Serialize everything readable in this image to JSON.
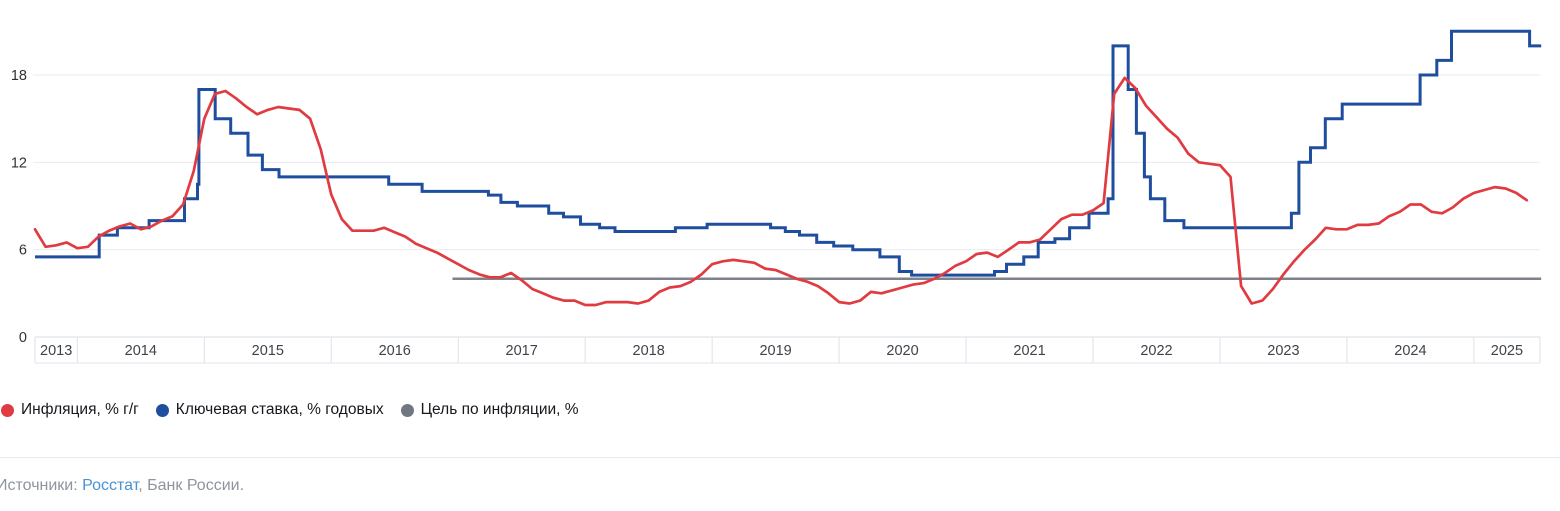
{
  "chart_data": {
    "type": "line",
    "title": "",
    "x_axis": {
      "start": "2013-09-01",
      "end": "2025-07-12",
      "year_labels": [
        2013,
        2014,
        2015,
        2016,
        2017,
        2018,
        2019,
        2020,
        2021,
        2022,
        2023,
        2024,
        2025
      ]
    },
    "y_axis": {
      "ticks": [
        0,
        6,
        12,
        18
      ],
      "max": 22,
      "grid": true
    },
    "legend_position": "bottom",
    "series": [
      {
        "name": "Инфляция, % г/г",
        "type": "line",
        "color": "#e13b42",
        "start": "2013-09",
        "frequency": "monthly",
        "values": [
          7.4,
          6.2,
          6.3,
          6.5,
          6.1,
          6.2,
          6.9,
          7.3,
          7.6,
          7.8,
          7.4,
          7.6,
          8.0,
          8.3,
          9.1,
          11.4,
          15.0,
          16.7,
          16.9,
          16.4,
          15.8,
          15.3,
          15.6,
          15.8,
          15.7,
          15.6,
          15.0,
          12.9,
          9.8,
          8.1,
          7.3,
          7.3,
          7.3,
          7.5,
          7.2,
          6.9,
          6.4,
          6.1,
          5.8,
          5.4,
          5.0,
          4.6,
          4.3,
          4.1,
          4.1,
          4.4,
          3.9,
          3.3,
          3.0,
          2.7,
          2.5,
          2.5,
          2.2,
          2.2,
          2.4,
          2.4,
          2.4,
          2.3,
          2.5,
          3.1,
          3.4,
          3.5,
          3.8,
          4.3,
          5.0,
          5.2,
          5.3,
          5.2,
          5.1,
          4.7,
          4.6,
          4.3,
          4.0,
          3.8,
          3.5,
          3.0,
          2.4,
          2.3,
          2.5,
          3.1,
          3.0,
          3.2,
          3.4,
          3.6,
          3.7,
          4.0,
          4.4,
          4.9,
          5.2,
          5.7,
          5.8,
          5.5,
          6.0,
          6.5,
          6.5,
          6.7,
          7.4,
          8.1,
          8.4,
          8.4,
          8.7,
          9.2,
          16.7,
          17.8,
          17.1,
          15.9,
          15.1,
          14.3,
          13.7,
          12.6,
          12.0,
          11.9,
          11.8,
          11.0,
          3.5,
          2.3,
          2.5,
          3.3,
          4.3,
          5.2,
          6.0,
          6.7,
          7.5,
          7.4,
          7.4,
          7.7,
          7.7,
          7.8,
          8.3,
          8.6,
          9.1,
          9.1,
          8.6,
          8.5,
          8.9,
          9.5,
          9.9,
          10.1,
          10.3,
          10.2,
          9.9,
          9.4
        ]
      },
      {
        "name": "Ключевая ставка, % годовых",
        "type": "step",
        "color": "#1f4e9e",
        "end": "2025-07-12",
        "changes": [
          [
            "2013-09-01",
            5.5
          ],
          [
            "2014-03-03",
            7.0
          ],
          [
            "2014-04-25",
            7.5
          ],
          [
            "2014-07-25",
            8.0
          ],
          [
            "2014-11-05",
            9.5
          ],
          [
            "2014-12-12",
            10.5
          ],
          [
            "2014-12-16",
            17.0
          ],
          [
            "2015-02-02",
            15.0
          ],
          [
            "2015-03-16",
            14.0
          ],
          [
            "2015-05-05",
            12.5
          ],
          [
            "2015-06-16",
            11.5
          ],
          [
            "2015-08-03",
            11.0
          ],
          [
            "2016-06-14",
            10.5
          ],
          [
            "2016-09-19",
            10.0
          ],
          [
            "2017-03-27",
            9.75
          ],
          [
            "2017-05-02",
            9.25
          ],
          [
            "2017-06-19",
            9.0
          ],
          [
            "2017-09-18",
            8.5
          ],
          [
            "2017-10-30",
            8.25
          ],
          [
            "2017-12-18",
            7.75
          ],
          [
            "2018-02-12",
            7.5
          ],
          [
            "2018-03-26",
            7.25
          ],
          [
            "2018-09-17",
            7.5
          ],
          [
            "2018-12-17",
            7.75
          ],
          [
            "2019-06-17",
            7.5
          ],
          [
            "2019-07-29",
            7.25
          ],
          [
            "2019-09-09",
            7.0
          ],
          [
            "2019-10-28",
            6.5
          ],
          [
            "2019-12-16",
            6.25
          ],
          [
            "2020-02-10",
            6.0
          ],
          [
            "2020-04-27",
            5.5
          ],
          [
            "2020-06-22",
            4.5
          ],
          [
            "2020-07-27",
            4.25
          ],
          [
            "2021-03-22",
            4.5
          ],
          [
            "2021-04-26",
            5.0
          ],
          [
            "2021-06-15",
            5.5
          ],
          [
            "2021-07-26",
            6.5
          ],
          [
            "2021-09-13",
            6.75
          ],
          [
            "2021-10-25",
            7.5
          ],
          [
            "2021-12-20",
            8.5
          ],
          [
            "2022-02-14",
            9.5
          ],
          [
            "2022-02-28",
            20.0
          ],
          [
            "2022-04-11",
            17.0
          ],
          [
            "2022-05-04",
            14.0
          ],
          [
            "2022-05-27",
            11.0
          ],
          [
            "2022-06-14",
            9.5
          ],
          [
            "2022-07-25",
            8.0
          ],
          [
            "2022-09-19",
            7.5
          ],
          [
            "2023-07-24",
            8.5
          ],
          [
            "2023-08-15",
            12.0
          ],
          [
            "2023-09-18",
            13.0
          ],
          [
            "2023-10-30",
            15.0
          ],
          [
            "2023-12-18",
            16.0
          ],
          [
            "2024-07-29",
            18.0
          ],
          [
            "2024-09-16",
            19.0
          ],
          [
            "2024-10-28",
            21.0
          ],
          [
            "2025-06-09",
            20.0
          ]
        ]
      },
      {
        "name": "Цель по инфляции, %",
        "type": "hline",
        "color": "#7d828b",
        "value": 4.0,
        "from": "2016-12-15",
        "to": "2025-07-12"
      }
    ]
  },
  "legend": {
    "items": [
      {
        "label": "Инфляция, % г/г",
        "color": "#e13b42"
      },
      {
        "label": "Ключевая ставка, % годовых",
        "color": "#1f4e9e"
      },
      {
        "label": "Цель по инфляции, %",
        "color": "#717680"
      }
    ]
  },
  "source": {
    "prefix": "Источники: ",
    "link_label": "Росстат",
    "suffix": ", Банк России.",
    "link_color": "#4793d3"
  }
}
